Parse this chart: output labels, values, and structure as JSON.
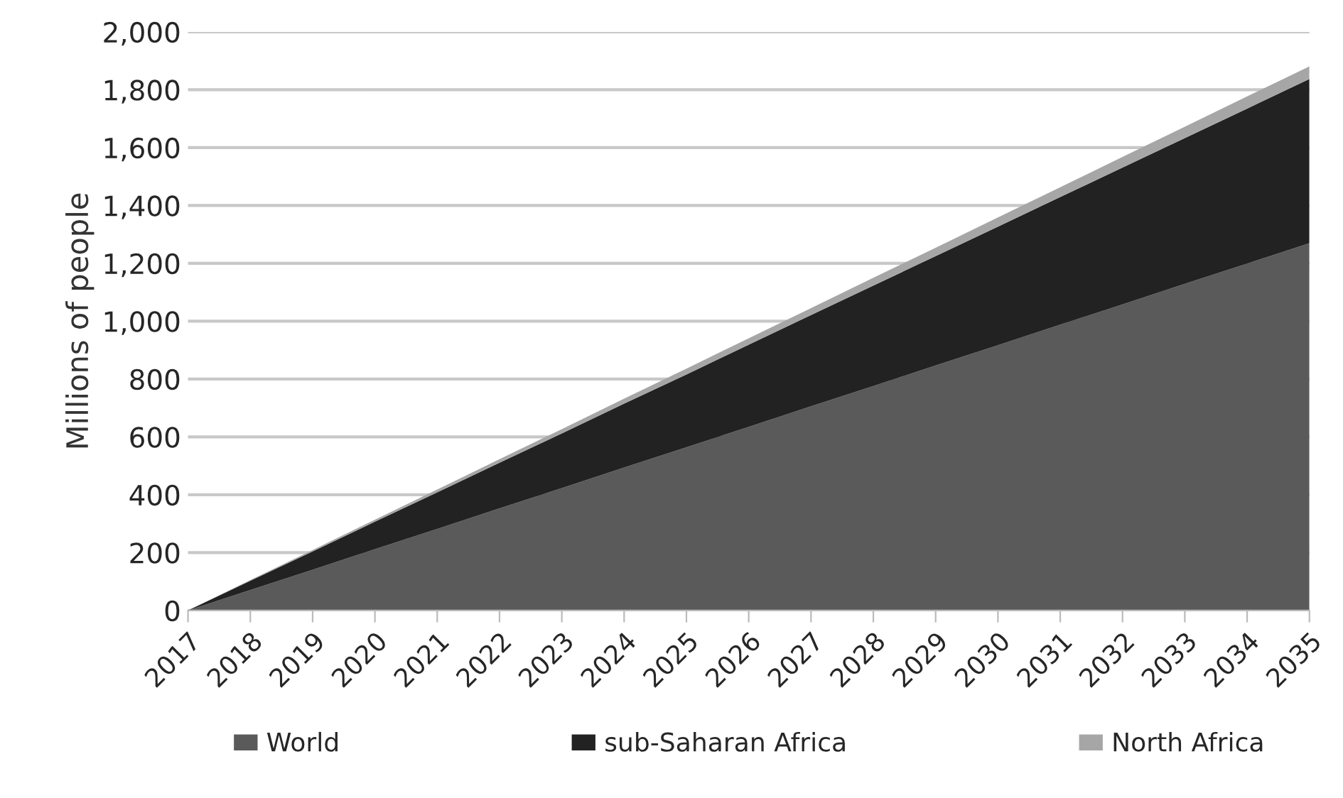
{
  "chart_data": {
    "type": "area",
    "stacked": true,
    "ylabel": "Millions of people",
    "categories": [
      "2017",
      "2018",
      "2019",
      "2020",
      "2021",
      "2022",
      "2023",
      "2024",
      "2025",
      "2026",
      "2027",
      "2028",
      "2029",
      "2030",
      "2031",
      "2032",
      "2033",
      "2034",
      "2035"
    ],
    "series": [
      {
        "name": "World",
        "color": "#5a5a5a",
        "values": [
          0,
          71,
          141,
          212,
          282,
          353,
          423,
          494,
          564,
          635,
          706,
          776,
          847,
          917,
          988,
          1058,
          1129,
          1199,
          1270
        ]
      },
      {
        "name": "sub-Saharan Africa",
        "color": "#222222",
        "values": [
          0,
          32,
          63,
          95,
          126,
          158,
          189,
          221,
          252,
          284,
          315,
          347,
          378,
          410,
          441,
          473,
          504,
          536,
          567
        ]
      },
      {
        "name": "North Africa",
        "color": "#a6a6a6",
        "values": [
          0,
          2,
          5,
          7,
          10,
          12,
          15,
          17,
          20,
          22,
          24,
          27,
          29,
          32,
          34,
          37,
          39,
          42,
          44
        ]
      }
    ],
    "ylim": [
      0,
      2000
    ],
    "yticks": [
      {
        "value": 0,
        "label": "0"
      },
      {
        "value": 200,
        "label": "200"
      },
      {
        "value": 400,
        "label": "400"
      },
      {
        "value": 600,
        "label": "600"
      },
      {
        "value": 800,
        "label": "800"
      },
      {
        "value": 1000,
        "label": "1,000"
      },
      {
        "value": 1200,
        "label": "1,200"
      },
      {
        "value": 1400,
        "label": "1,400"
      },
      {
        "value": 1600,
        "label": "1,600"
      },
      {
        "value": 1800,
        "label": "1,800"
      },
      {
        "value": 2000,
        "label": "2,000"
      }
    ],
    "grid": "y",
    "legend": "bottom"
  }
}
